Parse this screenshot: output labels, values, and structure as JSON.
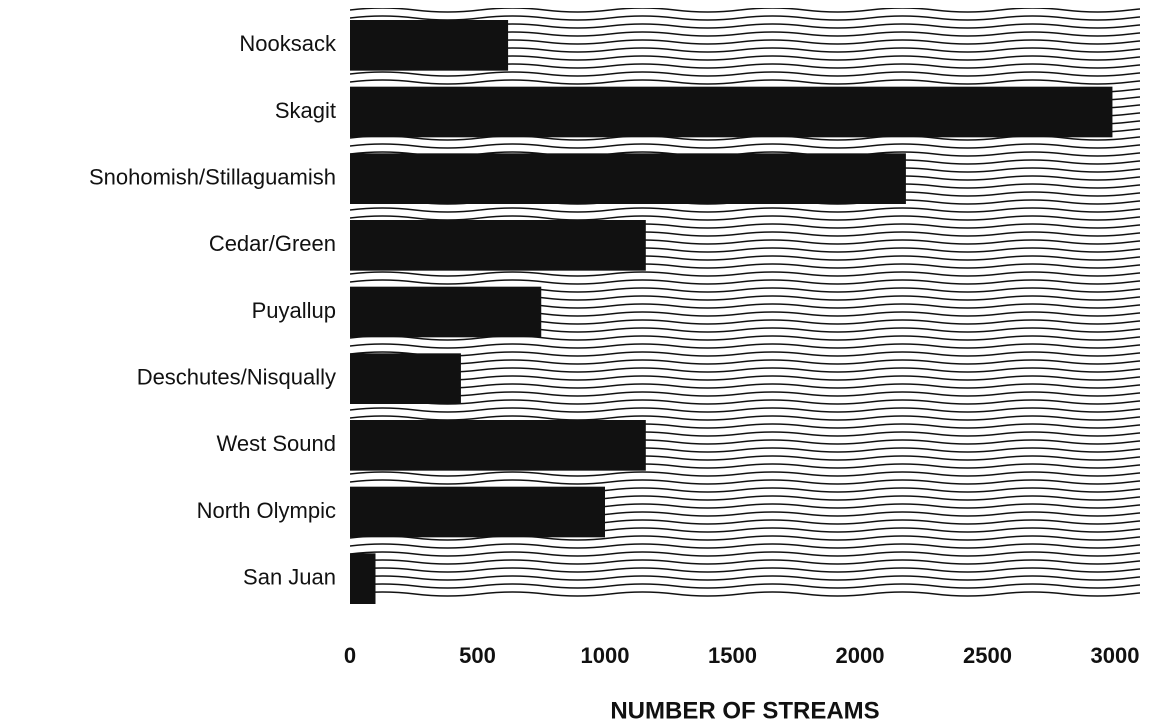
{
  "chart_data": {
    "type": "bar",
    "orientation": "horizontal",
    "categories": [
      "Nooksack",
      "Skagit",
      "Snohomish/Stillaguamish",
      "Cedar/Green",
      "Puyallup",
      "Deschutes/Nisqually",
      "West Sound",
      "North Olympic",
      "San Juan"
    ],
    "values": [
      620,
      2990,
      2180,
      1160,
      750,
      435,
      1160,
      1000,
      100
    ],
    "color": "#111111",
    "xlim": [
      0,
      3000
    ],
    "xticks": [
      0,
      500,
      1000,
      1500,
      2000,
      2500,
      3000
    ],
    "x_label": "NUMBER OF STREAMS",
    "grid": false
  }
}
